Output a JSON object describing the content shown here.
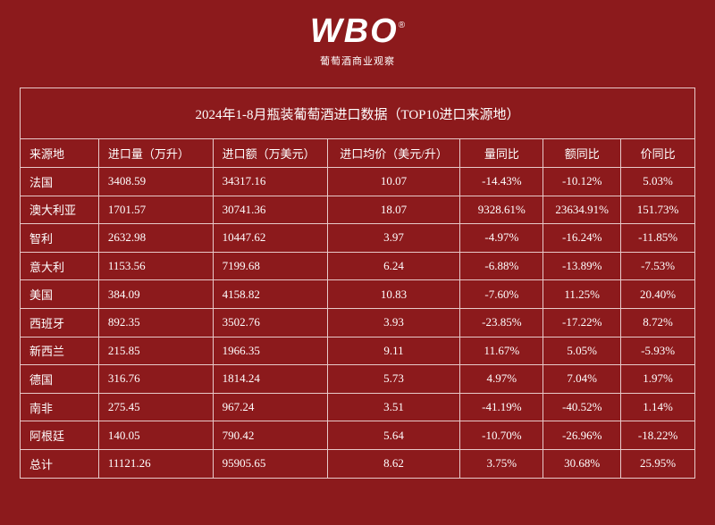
{
  "header": {
    "logo": "WBO",
    "logo_mark": "®",
    "subtitle": "葡萄酒商业观察"
  },
  "table": {
    "title": "2024年1-8月瓶装葡萄酒进口数据（TOP10进口来源地）",
    "columns": [
      "来源地",
      "进口量（万升）",
      "进口额（万美元）",
      "进口均价（美元/升）",
      "量同比",
      "额同比",
      "价同比"
    ],
    "rows": [
      [
        "法国",
        "3408.59",
        "34317.16",
        "10.07",
        "-14.43%",
        "-10.12%",
        "5.03%"
      ],
      [
        "澳大利亚",
        "1701.57",
        "30741.36",
        "18.07",
        "9328.61%",
        "23634.91%",
        "151.73%"
      ],
      [
        "智利",
        "2632.98",
        "10447.62",
        "3.97",
        "-4.97%",
        "-16.24%",
        "-11.85%"
      ],
      [
        "意大利",
        "1153.56",
        "7199.68",
        "6.24",
        "-6.88%",
        "-13.89%",
        "-7.53%"
      ],
      [
        "美国",
        "384.09",
        "4158.82",
        "10.83",
        "-7.60%",
        "11.25%",
        "20.40%"
      ],
      [
        "西班牙",
        "892.35",
        "3502.76",
        "3.93",
        "-23.85%",
        "-17.22%",
        "8.72%"
      ],
      [
        "新西兰",
        "215.85",
        "1966.35",
        "9.11",
        "11.67%",
        "5.05%",
        "-5.93%"
      ],
      [
        "德国",
        "316.76",
        "1814.24",
        "5.73",
        "4.97%",
        "7.04%",
        "1.97%"
      ],
      [
        "南非",
        "275.45",
        "967.24",
        "3.51",
        "-41.19%",
        "-40.52%",
        "1.14%"
      ],
      [
        "阿根廷",
        "140.05",
        "790.42",
        "5.64",
        "-10.70%",
        "-26.96%",
        "-18.22%"
      ],
      [
        "总计",
        "11121.26",
        "95905.65",
        "8.62",
        "3.75%",
        "30.68%",
        "25.95%"
      ]
    ]
  }
}
